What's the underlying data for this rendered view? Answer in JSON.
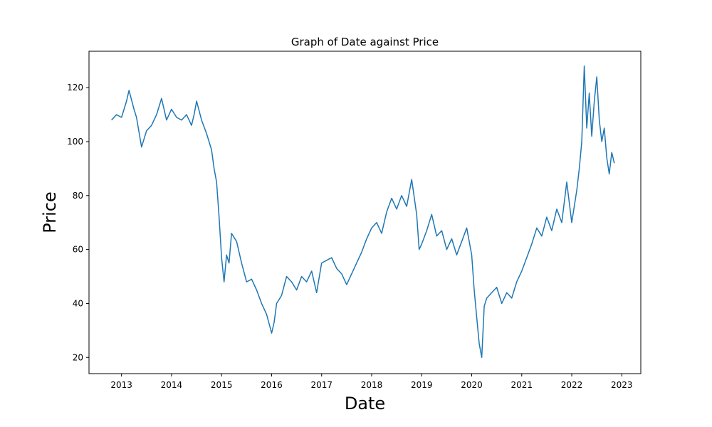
{
  "chart_data": {
    "type": "line",
    "title": "Graph of Date against Price",
    "xlabel": "Date",
    "ylabel": "Price",
    "x_tick_labels": [
      "2013",
      "2014",
      "2015",
      "2016",
      "2017",
      "2018",
      "2019",
      "2020",
      "2021",
      "2022",
      "2023"
    ],
    "x_ticks": [
      2013,
      2014,
      2015,
      2016,
      2017,
      2018,
      2019,
      2020,
      2021,
      2022,
      2023
    ],
    "y_tick_labels": [
      "20",
      "40",
      "60",
      "80",
      "100",
      "120"
    ],
    "y_ticks": [
      20,
      40,
      60,
      80,
      100,
      120
    ],
    "xlim": [
      2012.35,
      2023.38
    ],
    "ylim": [
      14.0,
      133.5
    ],
    "grid": false,
    "color": "#1f77b4",
    "series": [
      {
        "x": [
          2012.8,
          2012.9,
          2013.0,
          2013.1,
          2013.15,
          2013.25,
          2013.3,
          2013.4,
          2013.5,
          2013.6,
          2013.7,
          2013.8,
          2013.9,
          2014.0,
          2014.1,
          2014.2,
          2014.3,
          2014.4,
          2014.45,
          2014.5,
          2014.6,
          2014.7,
          2014.8,
          2014.85,
          2014.9,
          2014.95,
          2015.0,
          2015.05,
          2015.1,
          2015.15,
          2015.2,
          2015.3,
          2015.4,
          2015.5,
          2015.6,
          2015.7,
          2015.8,
          2015.9,
          2016.0,
          2016.05,
          2016.1,
          2016.2,
          2016.3,
          2016.4,
          2016.5,
          2016.6,
          2016.7,
          2016.8,
          2016.9,
          2017.0,
          2017.1,
          2017.2,
          2017.3,
          2017.4,
          2017.5,
          2017.6,
          2017.7,
          2017.8,
          2017.9,
          2018.0,
          2018.1,
          2018.2,
          2018.3,
          2018.4,
          2018.5,
          2018.6,
          2018.7,
          2018.8,
          2018.9,
          2018.95,
          2019.0,
          2019.1,
          2019.2,
          2019.3,
          2019.4,
          2019.5,
          2019.6,
          2019.7,
          2019.8,
          2019.9,
          2020.0,
          2020.05,
          2020.1,
          2020.15,
          2020.2,
          2020.25,
          2020.3,
          2020.4,
          2020.5,
          2020.6,
          2020.7,
          2020.8,
          2020.9,
          2021.0,
          2021.1,
          2021.2,
          2021.3,
          2021.4,
          2021.5,
          2021.6,
          2021.7,
          2021.8,
          2021.9,
          2022.0,
          2022.1,
          2022.15,
          2022.2,
          2022.25,
          2022.3,
          2022.35,
          2022.4,
          2022.45,
          2022.5,
          2022.55,
          2022.6,
          2022.65,
          2022.7,
          2022.75,
          2022.8,
          2022.85
        ],
        "y": [
          108,
          110,
          109,
          115,
          119,
          112,
          109,
          98,
          104,
          106,
          110,
          116,
          108,
          112,
          109,
          108,
          110,
          106,
          110,
          115,
          108,
          103,
          97,
          90,
          85,
          72,
          57,
          48,
          58,
          55,
          66,
          63,
          55,
          48,
          49,
          45,
          40,
          36,
          29,
          33,
          40,
          43,
          50,
          48,
          45,
          50,
          48,
          52,
          44,
          55,
          56,
          57,
          53,
          51,
          47,
          51,
          55,
          59,
          64,
          68,
          70,
          66,
          74,
          79,
          75,
          80,
          76,
          86,
          73,
          60,
          62,
          67,
          73,
          65,
          67,
          60,
          64,
          58,
          63,
          68,
          58,
          45,
          35,
          25,
          20,
          39,
          42,
          44,
          46,
          40,
          44,
          42,
          48,
          52,
          57,
          62,
          68,
          65,
          72,
          67,
          75,
          70,
          85,
          70,
          82,
          90,
          100,
          128,
          105,
          118,
          102,
          115,
          124,
          108,
          100,
          105,
          94,
          88,
          96,
          92
        ]
      }
    ]
  }
}
